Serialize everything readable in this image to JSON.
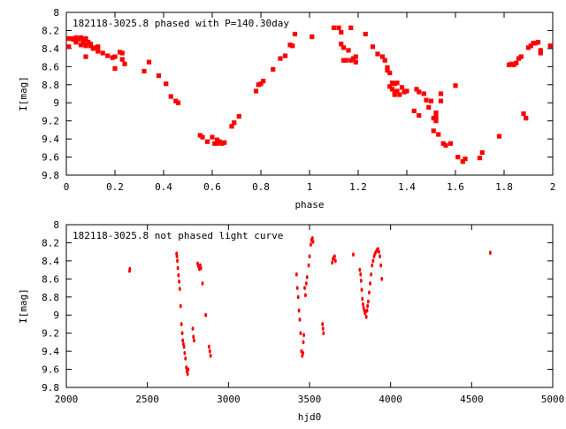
{
  "chart_data": [
    {
      "type": "scatter",
      "title": "182118-3025.8 phased with P=140.30day",
      "xlabel": "phase",
      "ylabel": "I[mag]",
      "xlim": [
        0,
        2
      ],
      "ylim": [
        9.8,
        8.0
      ],
      "y_inverted": true,
      "xticks": [
        "0",
        "0.2",
        "0.4",
        "0.6",
        "0.8",
        "1",
        "1.2",
        "1.4",
        "1.6",
        "1.8",
        "2"
      ],
      "yticks": [
        "8",
        "8.2",
        "8.4",
        "8.6",
        "8.8",
        "9",
        "9.2",
        "9.4",
        "9.6",
        "9.8"
      ],
      "grid": false,
      "marker_color": "#ff0000",
      "points": [
        [
          0.01,
          8.38
        ],
        [
          0.01,
          8.29
        ],
        [
          0.02,
          8.29
        ],
        [
          0.03,
          8.3
        ],
        [
          0.04,
          8.28
        ],
        [
          0.04,
          8.33
        ],
        [
          0.05,
          8.3
        ],
        [
          0.06,
          8.36
        ],
        [
          0.06,
          8.28
        ],
        [
          0.07,
          8.3
        ],
        [
          0.07,
          8.34
        ],
        [
          0.08,
          8.37
        ],
        [
          0.08,
          8.29
        ],
        [
          0.09,
          8.33
        ],
        [
          0.1,
          8.35
        ],
        [
          0.1,
          8.37
        ],
        [
          0.11,
          8.4
        ],
        [
          0.12,
          8.39
        ],
        [
          0.13,
          8.43
        ],
        [
          0.13,
          8.38
        ],
        [
          0.15,
          8.45
        ],
        [
          0.17,
          8.48
        ],
        [
          0.19,
          8.5
        ],
        [
          0.2,
          8.49
        ],
        [
          0.22,
          8.44
        ],
        [
          0.23,
          8.45
        ],
        [
          0.23,
          8.52
        ],
        [
          0.24,
          8.57
        ],
        [
          0.08,
          8.49
        ],
        [
          0.2,
          8.62
        ],
        [
          0.32,
          8.65
        ],
        [
          0.34,
          8.55
        ],
        [
          0.38,
          8.7
        ],
        [
          0.41,
          8.79
        ],
        [
          0.43,
          8.93
        ],
        [
          0.45,
          8.98
        ],
        [
          0.46,
          9.0
        ],
        [
          0.55,
          9.36
        ],
        [
          0.56,
          9.38
        ],
        [
          0.58,
          9.43
        ],
        [
          0.6,
          9.38
        ],
        [
          0.61,
          9.45
        ],
        [
          0.62,
          9.41
        ],
        [
          0.62,
          9.45
        ],
        [
          0.63,
          9.43
        ],
        [
          0.64,
          9.45
        ],
        [
          0.65,
          9.44
        ],
        [
          0.68,
          9.26
        ],
        [
          0.69,
          9.22
        ],
        [
          0.71,
          9.15
        ],
        [
          0.78,
          8.87
        ],
        [
          0.79,
          8.8
        ],
        [
          0.8,
          8.79
        ],
        [
          0.81,
          8.76
        ],
        [
          0.85,
          8.63
        ],
        [
          0.88,
          8.51
        ],
        [
          0.9,
          8.48
        ],
        [
          0.92,
          8.36
        ],
        [
          0.93,
          8.37
        ],
        [
          0.94,
          8.24
        ],
        [
          1.01,
          8.27
        ],
        [
          1.1,
          8.17
        ],
        [
          1.12,
          8.17
        ],
        [
          1.13,
          8.35
        ],
        [
          1.13,
          8.22
        ],
        [
          1.14,
          8.53
        ],
        [
          1.14,
          8.39
        ],
        [
          1.15,
          8.53
        ],
        [
          1.16,
          8.42
        ],
        [
          1.17,
          8.53
        ],
        [
          1.17,
          8.17
        ],
        [
          1.18,
          8.51
        ],
        [
          1.19,
          8.55
        ],
        [
          1.19,
          8.49
        ],
        [
          1.23,
          8.24
        ],
        [
          1.26,
          8.38
        ],
        [
          1.28,
          8.46
        ],
        [
          1.3,
          8.49
        ],
        [
          1.31,
          8.53
        ],
        [
          1.32,
          8.61
        ],
        [
          1.32,
          8.64
        ],
        [
          1.33,
          8.82
        ],
        [
          1.33,
          8.67
        ],
        [
          1.34,
          8.78
        ],
        [
          1.34,
          8.85
        ],
        [
          1.35,
          8.88
        ],
        [
          1.35,
          8.79
        ],
        [
          1.35,
          8.91
        ],
        [
          1.36,
          8.78
        ],
        [
          1.36,
          8.87
        ],
        [
          1.37,
          8.91
        ],
        [
          1.38,
          8.83
        ],
        [
          1.39,
          8.88
        ],
        [
          1.4,
          8.87
        ],
        [
          1.43,
          9.09
        ],
        [
          1.44,
          8.85
        ],
        [
          1.45,
          9.14
        ],
        [
          1.45,
          8.88
        ],
        [
          1.47,
          8.9
        ],
        [
          1.48,
          8.97
        ],
        [
          1.49,
          9.05
        ],
        [
          1.5,
          8.98
        ],
        [
          1.51,
          9.17
        ],
        [
          1.51,
          9.31
        ],
        [
          1.52,
          9.2
        ],
        [
          1.52,
          9.16
        ],
        [
          1.52,
          9.11
        ],
        [
          1.53,
          9.35
        ],
        [
          1.54,
          8.98
        ],
        [
          1.54,
          8.9
        ],
        [
          1.55,
          9.45
        ],
        [
          1.56,
          9.47
        ],
        [
          1.58,
          9.45
        ],
        [
          1.6,
          8.81
        ],
        [
          1.61,
          9.6
        ],
        [
          1.63,
          9.65
        ],
        [
          1.64,
          9.62
        ],
        [
          1.7,
          9.61
        ],
        [
          1.71,
          9.55
        ],
        [
          1.78,
          9.37
        ],
        [
          1.82,
          8.58
        ],
        [
          1.83,
          8.57
        ],
        [
          1.84,
          8.58
        ],
        [
          1.85,
          8.56
        ],
        [
          1.86,
          8.51
        ],
        [
          1.87,
          8.49
        ],
        [
          1.88,
          9.12
        ],
        [
          1.89,
          9.17
        ],
        [
          1.9,
          8.39
        ],
        [
          1.91,
          8.37
        ],
        [
          1.92,
          8.34
        ],
        [
          1.93,
          8.34
        ],
        [
          1.94,
          8.33
        ],
        [
          1.95,
          8.45
        ],
        [
          1.95,
          8.42
        ],
        [
          1.99,
          8.37
        ]
      ]
    },
    {
      "type": "scatter",
      "title": "182118-3025.8 not phased light curve",
      "xlabel": "hjd0",
      "ylabel": "I[mag]",
      "xlim": [
        2000,
        5000
      ],
      "ylim": [
        9.8,
        8.0
      ],
      "y_inverted": true,
      "xticks": [
        "2000",
        "2500",
        "3000",
        "3500",
        "4000",
        "4500",
        "5000"
      ],
      "yticks": [
        "8",
        "8.2",
        "8.4",
        "8.6",
        "8.8",
        "9",
        "9.2",
        "9.4",
        "9.6",
        "9.8"
      ],
      "grid": false,
      "marker_color": "#ff0000",
      "points": [
        [
          2390,
          8.51
        ],
        [
          2392,
          8.49
        ],
        [
          2680,
          8.32
        ],
        [
          2682,
          8.35
        ],
        [
          2685,
          8.4
        ],
        [
          2688,
          8.48
        ],
        [
          2692,
          8.56
        ],
        [
          2696,
          8.63
        ],
        [
          2700,
          8.71
        ],
        [
          2705,
          8.9
        ],
        [
          2710,
          9.1
        ],
        [
          2715,
          9.2
        ],
        [
          2718,
          9.28
        ],
        [
          2722,
          9.32
        ],
        [
          2726,
          9.35
        ],
        [
          2730,
          9.42
        ],
        [
          2735,
          9.48
        ],
        [
          2740,
          9.58
        ],
        [
          2744,
          9.62
        ],
        [
          2748,
          9.65
        ],
        [
          2752,
          9.6
        ],
        [
          2780,
          9.15
        ],
        [
          2784,
          9.24
        ],
        [
          2788,
          9.28
        ],
        [
          2810,
          8.43
        ],
        [
          2815,
          8.46
        ],
        [
          2820,
          8.49
        ],
        [
          2826,
          8.45
        ],
        [
          2830,
          8.48
        ],
        [
          2840,
          8.65
        ],
        [
          2860,
          9.0
        ],
        [
          2880,
          9.35
        ],
        [
          2885,
          9.4
        ],
        [
          2890,
          9.45
        ],
        [
          3420,
          8.55
        ],
        [
          3425,
          8.7
        ],
        [
          3430,
          8.8
        ],
        [
          3435,
          8.95
        ],
        [
          3440,
          9.05
        ],
        [
          3445,
          9.2
        ],
        [
          3450,
          9.4
        ],
        [
          3455,
          9.45
        ],
        [
          3460,
          9.42
        ],
        [
          3462,
          9.3
        ],
        [
          3465,
          9.22
        ],
        [
          3470,
          8.7
        ],
        [
          3475,
          8.78
        ],
        [
          3480,
          8.65
        ],
        [
          3485,
          8.58
        ],
        [
          3495,
          8.45
        ],
        [
          3500,
          8.35
        ],
        [
          3508,
          8.22
        ],
        [
          3512,
          8.17
        ],
        [
          3518,
          8.15
        ],
        [
          3522,
          8.19
        ],
        [
          3580,
          9.1
        ],
        [
          3583,
          9.15
        ],
        [
          3586,
          9.2
        ],
        [
          3640,
          8.42
        ],
        [
          3645,
          8.38
        ],
        [
          3650,
          8.36
        ],
        [
          3655,
          8.35
        ],
        [
          3660,
          8.4
        ],
        [
          3770,
          8.33
        ],
        [
          3810,
          8.5
        ],
        [
          3815,
          8.55
        ],
        [
          3818,
          8.62
        ],
        [
          3822,
          8.72
        ],
        [
          3826,
          8.82
        ],
        [
          3830,
          8.88
        ],
        [
          3834,
          8.92
        ],
        [
          3838,
          8.95
        ],
        [
          3842,
          8.98
        ],
        [
          3846,
          8.96
        ],
        [
          3850,
          9.02
        ],
        [
          3855,
          8.95
        ],
        [
          3858,
          8.9
        ],
        [
          3862,
          8.85
        ],
        [
          3868,
          8.75
        ],
        [
          3874,
          8.65
        ],
        [
          3880,
          8.55
        ],
        [
          3886,
          8.45
        ],
        [
          3892,
          8.4
        ],
        [
          3898,
          8.35
        ],
        [
          3904,
          8.32
        ],
        [
          3910,
          8.3
        ],
        [
          3916,
          8.28
        ],
        [
          3922,
          8.27
        ],
        [
          3928,
          8.3
        ],
        [
          3934,
          8.35
        ],
        [
          3940,
          8.45
        ],
        [
          3946,
          8.6
        ],
        [
          4615,
          8.31
        ]
      ]
    }
  ]
}
